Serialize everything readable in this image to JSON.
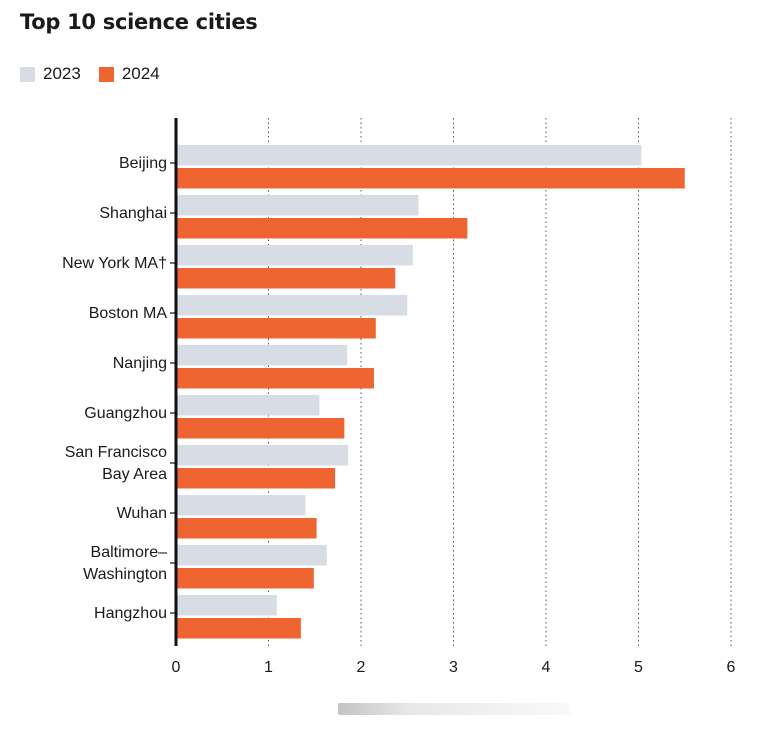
{
  "chart_data": {
    "type": "bar",
    "orientation": "horizontal",
    "title": "Top 10 science cities",
    "categories": [
      [
        "Beijing"
      ],
      [
        "Shanghai"
      ],
      [
        "New York MA†"
      ],
      [
        "Boston MA"
      ],
      [
        "Nanjing"
      ],
      [
        "Guangzhou"
      ],
      [
        "San Francisco",
        "Bay Area"
      ],
      [
        "Wuhan"
      ],
      [
        "Baltimore–",
        "Washington"
      ],
      [
        "Hangzhou"
      ]
    ],
    "series": [
      {
        "name": "2023",
        "color": "#d8dce5",
        "values": [
          5.03,
          2.62,
          2.56,
          2.5,
          1.85,
          1.55,
          1.86,
          1.4,
          1.63,
          1.09
        ]
      },
      {
        "name": "2024",
        "color": "#ef6532",
        "values": [
          5.5,
          3.15,
          2.37,
          2.16,
          2.14,
          1.82,
          1.72,
          1.52,
          1.49,
          1.35
        ]
      }
    ],
    "xlim": [
      0,
      6
    ],
    "xticks": [
      "0",
      "1",
      "2",
      "3",
      "4",
      "5",
      "6"
    ],
    "grid": "vertical-dotted",
    "legend_position": "top-left"
  }
}
